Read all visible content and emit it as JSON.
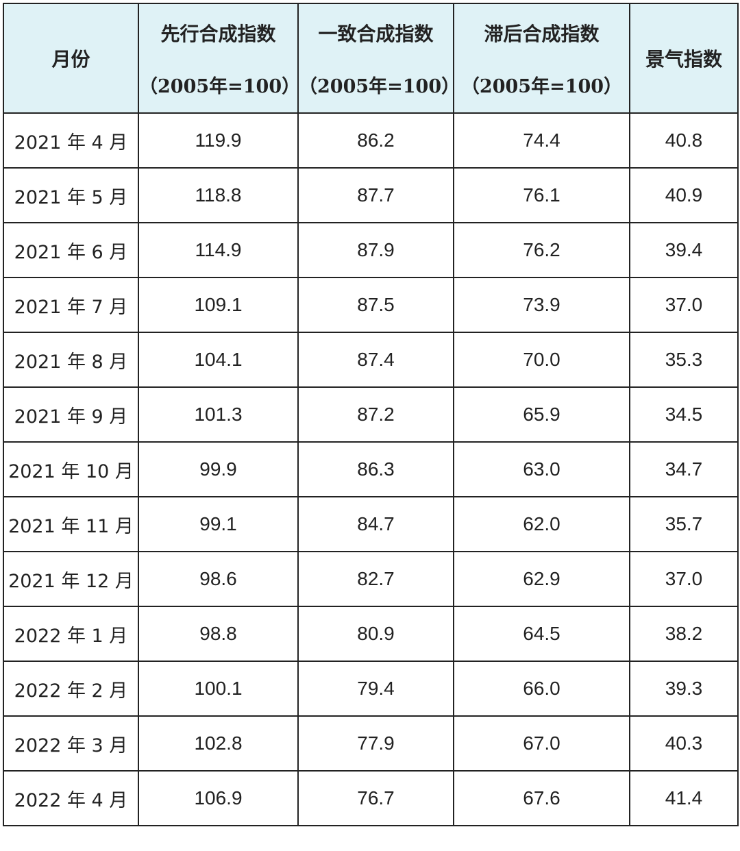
{
  "table": {
    "header": [
      {
        "title": "月份"
      },
      {
        "title": "先行合成指数",
        "unit": "（2005年=100）"
      },
      {
        "title": "一致合成指数",
        "unit": "（2005年=100）"
      },
      {
        "title": "滞后合成指数",
        "unit": "（2005年=100）"
      },
      {
        "title": "景气指数"
      }
    ],
    "rows": [
      [
        "2021 年 4 月",
        "119.9",
        "86.2",
        "74.4",
        "40.8"
      ],
      [
        "2021 年 5 月",
        "118.8",
        "87.7",
        "76.1",
        "40.9"
      ],
      [
        "2021 年 6 月",
        "114.9",
        "87.9",
        "76.2",
        "39.4"
      ],
      [
        "2021 年 7 月",
        "109.1",
        "87.5",
        "73.9",
        "37.0"
      ],
      [
        "2021 年 8 月",
        "104.1",
        "87.4",
        "70.0",
        "35.3"
      ],
      [
        "2021 年 9 月",
        "101.3",
        "87.2",
        "65.9",
        "34.5"
      ],
      [
        "2021 年 10 月",
        "99.9",
        "86.3",
        "63.0",
        "34.7"
      ],
      [
        "2021 年 11 月",
        "99.1",
        "84.7",
        "62.0",
        "35.7"
      ],
      [
        "2021 年 12 月",
        "98.6",
        "82.7",
        "62.9",
        "37.0"
      ],
      [
        "2022 年 1 月",
        "98.8",
        "80.9",
        "64.5",
        "38.2"
      ],
      [
        "2022 年 2 月",
        "100.1",
        "79.4",
        "66.0",
        "39.3"
      ],
      [
        "2022 年 3 月",
        "102.8",
        "77.9",
        "67.0",
        "40.3"
      ],
      [
        "2022 年 4 月",
        "106.9",
        "76.7",
        "67.6",
        "41.4"
      ]
    ]
  }
}
